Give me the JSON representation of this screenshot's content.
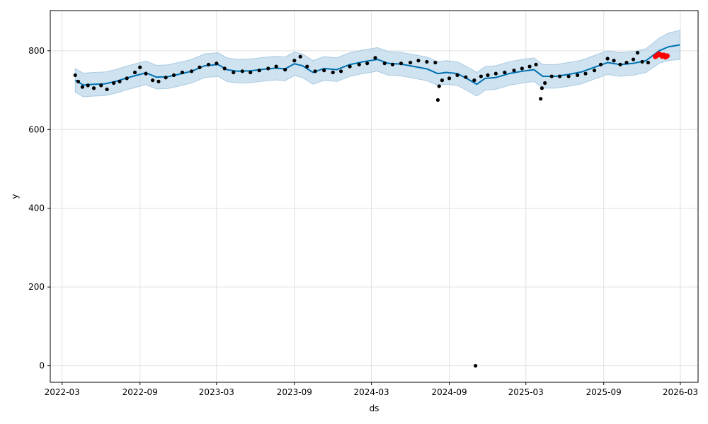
{
  "chart_data": {
    "type": "line",
    "xlabel": "ds",
    "ylabel": "y",
    "xlim": [
      "2022-02-01",
      "2026-04-12"
    ],
    "ylim": [
      -42,
      902
    ],
    "grid": true,
    "x_ticks": [
      "2022-03",
      "2022-09",
      "2023-03",
      "2023-09",
      "2024-03",
      "2024-09",
      "2025-03",
      "2025-09",
      "2026-03"
    ],
    "y_ticks": [
      0,
      200,
      400,
      600,
      800
    ],
    "colors": {
      "observed": "#000000",
      "forecast": "#0072B2",
      "uncertainty": "#B9D6EA",
      "highlight": "#ff0000",
      "grid": "#e0e0e0"
    },
    "series": [
      {
        "kind": "forecast_line",
        "points": [
          [
            "2022-04-01",
            725
          ],
          [
            "2022-04-20",
            713
          ],
          [
            "2022-05-15",
            715
          ],
          [
            "2022-06-10",
            716
          ],
          [
            "2022-07-05",
            722
          ],
          [
            "2022-08-01",
            731
          ],
          [
            "2022-08-25",
            738
          ],
          [
            "2022-09-15",
            744
          ],
          [
            "2022-10-10",
            733
          ],
          [
            "2022-11-05",
            734
          ],
          [
            "2022-12-01",
            740
          ],
          [
            "2023-01-01",
            748
          ],
          [
            "2023-02-01",
            762
          ],
          [
            "2023-03-05",
            765
          ],
          [
            "2023-03-25",
            752
          ],
          [
            "2023-04-20",
            748
          ],
          [
            "2023-05-20",
            749
          ],
          [
            "2023-06-20",
            753
          ],
          [
            "2023-07-20",
            756
          ],
          [
            "2023-08-10",
            754
          ],
          [
            "2023-09-01",
            767
          ],
          [
            "2023-09-20",
            762
          ],
          [
            "2023-10-15",
            745
          ],
          [
            "2023-11-10",
            755
          ],
          [
            "2023-12-10",
            752
          ],
          [
            "2024-01-10",
            765
          ],
          [
            "2024-02-10",
            772
          ],
          [
            "2024-03-15",
            778
          ],
          [
            "2024-04-10",
            768
          ],
          [
            "2024-05-10",
            766
          ],
          [
            "2024-06-10",
            760
          ],
          [
            "2024-07-10",
            754
          ],
          [
            "2024-08-05",
            742
          ],
          [
            "2024-08-25",
            745
          ],
          [
            "2024-09-20",
            742
          ],
          [
            "2024-10-15",
            728
          ],
          [
            "2024-11-05",
            715
          ],
          [
            "2024-11-25",
            730
          ],
          [
            "2024-12-20",
            732
          ],
          [
            "2025-01-20",
            742
          ],
          [
            "2025-02-20",
            748
          ],
          [
            "2025-03-20",
            752
          ],
          [
            "2025-04-10",
            735
          ],
          [
            "2025-05-10",
            735
          ],
          [
            "2025-06-10",
            740
          ],
          [
            "2025-07-10",
            746
          ],
          [
            "2025-08-10",
            758
          ],
          [
            "2025-09-10",
            770
          ],
          [
            "2025-10-10",
            765
          ],
          [
            "2025-11-10",
            768
          ],
          [
            "2025-12-10",
            775
          ],
          [
            "2026-01-10",
            800
          ],
          [
            "2026-02-01",
            810
          ],
          [
            "2026-02-28",
            815
          ]
        ]
      },
      {
        "kind": "uncertainty_band",
        "points": [
          [
            "2022-04-01",
            695,
            755
          ],
          [
            "2022-04-20",
            683,
            743
          ],
          [
            "2022-05-15",
            685,
            745
          ],
          [
            "2022-06-10",
            686,
            746
          ],
          [
            "2022-07-05",
            692,
            752
          ],
          [
            "2022-08-01",
            701,
            761
          ],
          [
            "2022-08-25",
            708,
            768
          ],
          [
            "2022-09-15",
            714,
            774
          ],
          [
            "2022-10-10",
            703,
            763
          ],
          [
            "2022-11-05",
            704,
            764
          ],
          [
            "2022-12-01",
            710,
            770
          ],
          [
            "2023-01-01",
            718,
            778
          ],
          [
            "2023-02-01",
            732,
            792
          ],
          [
            "2023-03-05",
            735,
            795
          ],
          [
            "2023-03-25",
            722,
            782
          ],
          [
            "2023-04-20",
            718,
            778
          ],
          [
            "2023-05-20",
            719,
            779
          ],
          [
            "2023-06-20",
            723,
            783
          ],
          [
            "2023-07-20",
            726,
            786
          ],
          [
            "2023-08-10",
            724,
            784
          ],
          [
            "2023-09-01",
            737,
            797
          ],
          [
            "2023-09-20",
            732,
            792
          ],
          [
            "2023-10-15",
            715,
            775
          ],
          [
            "2023-11-10",
            725,
            785
          ],
          [
            "2023-12-10",
            722,
            782
          ],
          [
            "2024-01-10",
            735,
            795
          ],
          [
            "2024-02-10",
            742,
            802
          ],
          [
            "2024-03-15",
            748,
            808
          ],
          [
            "2024-04-10",
            738,
            798
          ],
          [
            "2024-05-10",
            736,
            796
          ],
          [
            "2024-06-10",
            730,
            790
          ],
          [
            "2024-07-10",
            724,
            784
          ],
          [
            "2024-08-05",
            712,
            772
          ],
          [
            "2024-08-25",
            715,
            775
          ],
          [
            "2024-09-20",
            712,
            772
          ],
          [
            "2024-10-15",
            698,
            758
          ],
          [
            "2024-11-05",
            685,
            745
          ],
          [
            "2024-11-25",
            700,
            760
          ],
          [
            "2024-12-20",
            702,
            762
          ],
          [
            "2025-01-20",
            712,
            772
          ],
          [
            "2025-02-20",
            718,
            778
          ],
          [
            "2025-03-20",
            722,
            782
          ],
          [
            "2025-04-10",
            705,
            765
          ],
          [
            "2025-05-10",
            705,
            765
          ],
          [
            "2025-06-10",
            710,
            770
          ],
          [
            "2025-07-10",
            716,
            776
          ],
          [
            "2025-08-10",
            728,
            788
          ],
          [
            "2025-09-10",
            740,
            800
          ],
          [
            "2025-10-10",
            735,
            795
          ],
          [
            "2025-11-10",
            738,
            798
          ],
          [
            "2025-12-10",
            745,
            805
          ],
          [
            "2026-01-10",
            768,
            832
          ],
          [
            "2026-02-01",
            775,
            845
          ],
          [
            "2026-02-28",
            778,
            852
          ]
        ]
      },
      {
        "kind": "observed",
        "points": [
          [
            "2022-04-01",
            738
          ],
          [
            "2022-04-08",
            722
          ],
          [
            "2022-04-18",
            708
          ],
          [
            "2022-05-01",
            712
          ],
          [
            "2022-05-15",
            705
          ],
          [
            "2022-06-01",
            712
          ],
          [
            "2022-06-15",
            702
          ],
          [
            "2022-07-01",
            718
          ],
          [
            "2022-07-15",
            722
          ],
          [
            "2022-08-01",
            730
          ],
          [
            "2022-08-20",
            745
          ],
          [
            "2022-09-01",
            758
          ],
          [
            "2022-09-15",
            742
          ],
          [
            "2022-10-01",
            725
          ],
          [
            "2022-10-15",
            722
          ],
          [
            "2022-11-01",
            732
          ],
          [
            "2022-11-20",
            738
          ],
          [
            "2022-12-10",
            745
          ],
          [
            "2023-01-01",
            748
          ],
          [
            "2023-01-20",
            758
          ],
          [
            "2023-02-10",
            765
          ],
          [
            "2023-03-01",
            768
          ],
          [
            "2023-03-20",
            755
          ],
          [
            "2023-04-10",
            745
          ],
          [
            "2023-05-01",
            748
          ],
          [
            "2023-05-20",
            745
          ],
          [
            "2023-06-10",
            750
          ],
          [
            "2023-07-01",
            755
          ],
          [
            "2023-07-20",
            760
          ],
          [
            "2023-08-10",
            752
          ],
          [
            "2023-09-01",
            775
          ],
          [
            "2023-09-15",
            785
          ],
          [
            "2023-10-01",
            760
          ],
          [
            "2023-10-20",
            748
          ],
          [
            "2023-11-10",
            750
          ],
          [
            "2023-12-01",
            745
          ],
          [
            "2023-12-20",
            748
          ],
          [
            "2024-01-10",
            760
          ],
          [
            "2024-02-01",
            765
          ],
          [
            "2024-02-20",
            768
          ],
          [
            "2024-03-10",
            782
          ],
          [
            "2024-04-01",
            768
          ],
          [
            "2024-04-20",
            765
          ],
          [
            "2024-05-10",
            768
          ],
          [
            "2024-06-01",
            770
          ],
          [
            "2024-06-20",
            775
          ],
          [
            "2024-07-10",
            772
          ],
          [
            "2024-07-30",
            770
          ],
          [
            "2024-08-05",
            675
          ],
          [
            "2024-08-08",
            710
          ],
          [
            "2024-08-15",
            725
          ],
          [
            "2024-09-01",
            730
          ],
          [
            "2024-09-20",
            738
          ],
          [
            "2024-10-10",
            733
          ],
          [
            "2024-10-30",
            725
          ],
          [
            "2024-11-02",
            0
          ],
          [
            "2024-11-15",
            735
          ],
          [
            "2024-12-01",
            738
          ],
          [
            "2024-12-20",
            742
          ],
          [
            "2025-01-10",
            745
          ],
          [
            "2025-02-01",
            750
          ],
          [
            "2025-02-20",
            755
          ],
          [
            "2025-03-10",
            760
          ],
          [
            "2025-03-25",
            765
          ],
          [
            "2025-04-05",
            678
          ],
          [
            "2025-04-08",
            705
          ],
          [
            "2025-04-15",
            718
          ],
          [
            "2025-05-01",
            735
          ],
          [
            "2025-05-20",
            735
          ],
          [
            "2025-06-10",
            735
          ],
          [
            "2025-07-01",
            738
          ],
          [
            "2025-07-20",
            742
          ],
          [
            "2025-08-10",
            750
          ],
          [
            "2025-08-25",
            765
          ],
          [
            "2025-09-10",
            780
          ],
          [
            "2025-09-25",
            775
          ],
          [
            "2025-10-10",
            765
          ],
          [
            "2025-10-25",
            770
          ],
          [
            "2025-11-10",
            778
          ],
          [
            "2025-11-20",
            795
          ],
          [
            "2025-12-01",
            772
          ],
          [
            "2025-12-15",
            770
          ]
        ]
      },
      {
        "kind": "highlight",
        "points": [
          [
            "2026-01-01",
            785
          ],
          [
            "2026-01-05",
            788
          ],
          [
            "2026-01-09",
            792
          ],
          [
            "2026-01-13",
            790
          ],
          [
            "2026-01-17",
            786
          ],
          [
            "2026-01-21",
            789
          ],
          [
            "2026-01-25",
            784
          ],
          [
            "2026-01-29",
            787
          ]
        ]
      }
    ]
  }
}
